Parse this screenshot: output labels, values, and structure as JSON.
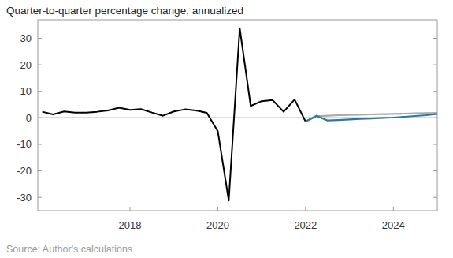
{
  "chart_data": {
    "type": "line",
    "title": "Quarter-to-quarter percentage change, annualized",
    "source": "Source: Author's calculations.",
    "x": [
      2016.0,
      2016.25,
      2016.5,
      2016.75,
      2017.0,
      2017.25,
      2017.5,
      2017.75,
      2018.0,
      2018.25,
      2018.5,
      2018.75,
      2019.0,
      2019.25,
      2019.5,
      2019.75,
      2020.0,
      2020.25,
      2020.5,
      2020.75,
      2021.0,
      2021.25,
      2021.5,
      2021.75,
      2022.0,
      2022.25,
      2022.5,
      2022.75,
      2023.0,
      2023.25,
      2023.5,
      2023.75,
      2024.0,
      2024.25,
      2024.5,
      2024.75,
      2025.0
    ],
    "series": [
      {
        "color": "#000000",
        "values": [
          2.3,
          1.3,
          2.4,
          2.0,
          2.0,
          2.3,
          2.8,
          3.8,
          3.0,
          3.3,
          2.0,
          0.8,
          2.4,
          3.2,
          2.8,
          1.9,
          -5.0,
          -31.2,
          33.8,
          4.5,
          6.3,
          6.7,
          2.3,
          6.9,
          -1.4,
          null,
          null,
          null,
          null,
          null,
          null,
          null,
          null,
          null,
          null,
          null,
          null
        ]
      },
      {
        "color": "#aaaaaa",
        "values": [
          null,
          null,
          null,
          null,
          null,
          null,
          null,
          null,
          null,
          null,
          null,
          null,
          null,
          null,
          null,
          null,
          null,
          null,
          null,
          null,
          null,
          null,
          null,
          null,
          -1.4,
          0.6,
          0.8,
          1.0,
          1.1,
          1.2,
          1.3,
          1.4,
          1.5,
          1.6,
          1.7,
          1.8,
          1.9
        ]
      },
      {
        "color": "#2b7a9e",
        "values": [
          null,
          null,
          null,
          null,
          null,
          null,
          null,
          null,
          null,
          null,
          null,
          null,
          null,
          null,
          null,
          null,
          null,
          null,
          null,
          null,
          null,
          null,
          null,
          null,
          -1.4,
          0.8,
          -1.0,
          -0.8,
          -0.6,
          -0.4,
          -0.2,
          0.0,
          0.1,
          0.4,
          0.7,
          1.0,
          1.5
        ]
      }
    ],
    "xlim": [
      2015.9,
      2025.0
    ],
    "xticks": [
      2018,
      2020,
      2022,
      2024
    ],
    "ylim": [
      -35,
      37
    ],
    "yticks": [
      -30,
      -20,
      -10,
      0,
      10,
      20,
      30
    ],
    "grid": false
  }
}
